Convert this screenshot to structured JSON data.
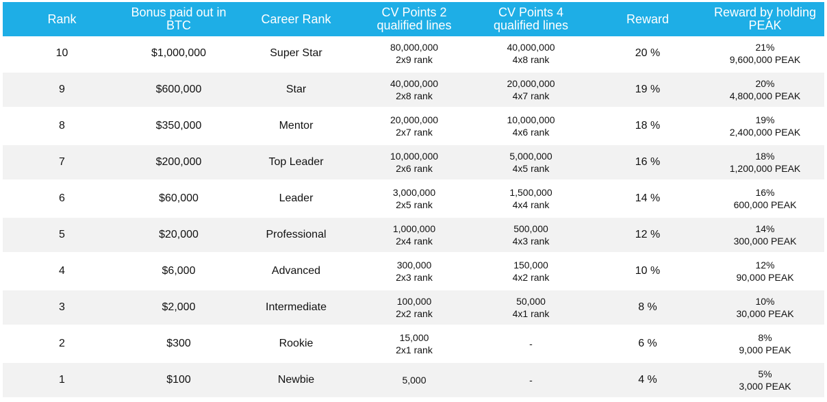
{
  "headers": {
    "rank": "Rank",
    "bonus": "Bonus paid out in BTC",
    "career": "Career Rank",
    "cv2": "CV Points 2 qualified lines",
    "cv4": "CV Points 4 qualified lines",
    "reward": "Reward",
    "holding": "Reward by holding PEAK"
  },
  "rows": [
    {
      "rank": "10",
      "bonus": "$1,000,000",
      "career": "Super Star",
      "cv2_points": "80,000,000",
      "cv2_rank": "2x9 rank",
      "cv4_points": "40,000,000",
      "cv4_rank": "4x8 rank",
      "reward": "20 %",
      "holding_pct": "21%",
      "holding_peak": "9,600,000 PEAK"
    },
    {
      "rank": "9",
      "bonus": "$600,000",
      "career": "Star",
      "cv2_points": "40,000,000",
      "cv2_rank": "2x8 rank",
      "cv4_points": "20,000,000",
      "cv4_rank": "4x7 rank",
      "reward": "19 %",
      "holding_pct": "20%",
      "holding_peak": "4,800,000 PEAK"
    },
    {
      "rank": "8",
      "bonus": "$350,000",
      "career": "Mentor",
      "cv2_points": "20,000,000",
      "cv2_rank": "2x7 rank",
      "cv4_points": "10,000,000",
      "cv4_rank": "4x6 rank",
      "reward": "18 %",
      "holding_pct": "19%",
      "holding_peak": "2,400,000 PEAK"
    },
    {
      "rank": "7",
      "bonus": "$200,000",
      "career": "Top Leader",
      "cv2_points": "10,000,000",
      "cv2_rank": "2x6 rank",
      "cv4_points": "5,000,000",
      "cv4_rank": "4x5 rank",
      "reward": "16 %",
      "holding_pct": "18%",
      "holding_peak": "1,200,000 PEAK"
    },
    {
      "rank": "6",
      "bonus": "$60,000",
      "career": "Leader",
      "cv2_points": "3,000,000",
      "cv2_rank": "2x5 rank",
      "cv4_points": "1,500,000",
      "cv4_rank": "4x4 rank",
      "reward": "14 %",
      "holding_pct": "16%",
      "holding_peak": "600,000 PEAK"
    },
    {
      "rank": "5",
      "bonus": "$20,000",
      "career": "Professional",
      "cv2_points": "1,000,000",
      "cv2_rank": "2x4 rank",
      "cv4_points": "500,000",
      "cv4_rank": "4x3 rank",
      "reward": "12 %",
      "holding_pct": "14%",
      "holding_peak": "300,000 PEAK"
    },
    {
      "rank": "4",
      "bonus": "$6,000",
      "career": "Advanced",
      "cv2_points": "300,000",
      "cv2_rank": "2x3 rank",
      "cv4_points": "150,000",
      "cv4_rank": "4x2 rank",
      "reward": "10 %",
      "holding_pct": "12%",
      "holding_peak": "90,000 PEAK"
    },
    {
      "rank": "3",
      "bonus": "$2,000",
      "career": "Intermediate",
      "cv2_points": "100,000",
      "cv2_rank": "2x2 rank",
      "cv4_points": "50,000",
      "cv4_rank": "4x1 rank",
      "reward": "8 %",
      "holding_pct": "10%",
      "holding_peak": "30,000 PEAK"
    },
    {
      "rank": "2",
      "bonus": "$300",
      "career": "Rookie",
      "cv2_points": "15,000",
      "cv2_rank": "2x1 rank",
      "cv4_points": "-",
      "cv4_rank": "",
      "reward": "6 %",
      "holding_pct": "8%",
      "holding_peak": "9,000 PEAK"
    },
    {
      "rank": "1",
      "bonus": "$100",
      "career": "Newbie",
      "cv2_points": "5,000",
      "cv2_rank": "",
      "cv4_points": "-",
      "cv4_rank": "",
      "reward": "4 %",
      "holding_pct": "5%",
      "holding_peak": "3,000 PEAK"
    }
  ],
  "colors": {
    "header_bg": "#1eaee6",
    "header_text": "#ffffff",
    "alt_row_bg": "#f2f2f2"
  }
}
